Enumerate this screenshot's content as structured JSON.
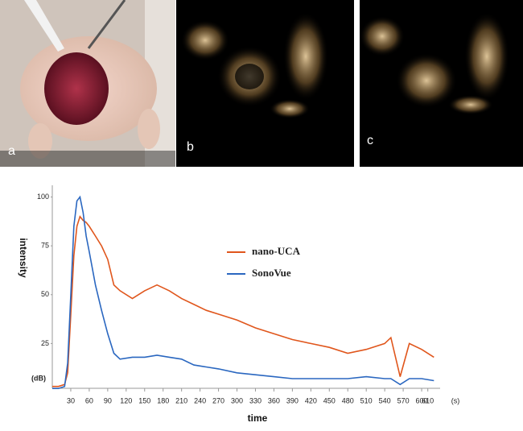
{
  "panels": [
    {
      "label": "a"
    },
    {
      "label": "b"
    },
    {
      "label": "c"
    }
  ],
  "chart_data": {
    "type": "line",
    "x_label": "time",
    "x_unit": "(s)",
    "y_label": "intensity",
    "y_unit": "(dB)",
    "x": [
      0,
      10,
      20,
      25,
      30,
      35,
      40,
      45,
      50,
      55,
      60,
      70,
      80,
      90,
      100,
      110,
      130,
      150,
      170,
      190,
      210,
      230,
      250,
      270,
      300,
      330,
      360,
      390,
      420,
      450,
      480,
      510,
      540,
      550,
      565,
      580,
      600,
      620
    ],
    "series": [
      {
        "name": "nano-UCA",
        "color": "#e0561c",
        "values": [
          3,
          3,
          4,
          10,
          40,
          70,
          85,
          90,
          88,
          87,
          85,
          80,
          75,
          68,
          55,
          52,
          48,
          52,
          55,
          52,
          48,
          45,
          42,
          40,
          37,
          33,
          30,
          27,
          25,
          23,
          20,
          22,
          25,
          28,
          8,
          25,
          22,
          18
        ]
      },
      {
        "name": "SonoVue",
        "color": "#2a67c0",
        "values": [
          2,
          2,
          3,
          15,
          50,
          85,
          98,
          100,
          92,
          80,
          72,
          55,
          42,
          30,
          20,
          17,
          18,
          18,
          19,
          18,
          17,
          14,
          13,
          12,
          10,
          9,
          8,
          7,
          7,
          7,
          7,
          8,
          7,
          7,
          4,
          7,
          7,
          6
        ]
      }
    ],
    "xlim": [
      0,
      630
    ],
    "ylim": [
      0,
      106
    ],
    "xticks": [
      30,
      60,
      90,
      120,
      150,
      180,
      210,
      240,
      270,
      300,
      330,
      360,
      390,
      420,
      450,
      480,
      510,
      540,
      570,
      600,
      610
    ],
    "yticks": [
      25,
      50,
      75,
      100
    ],
    "grid": false
  }
}
